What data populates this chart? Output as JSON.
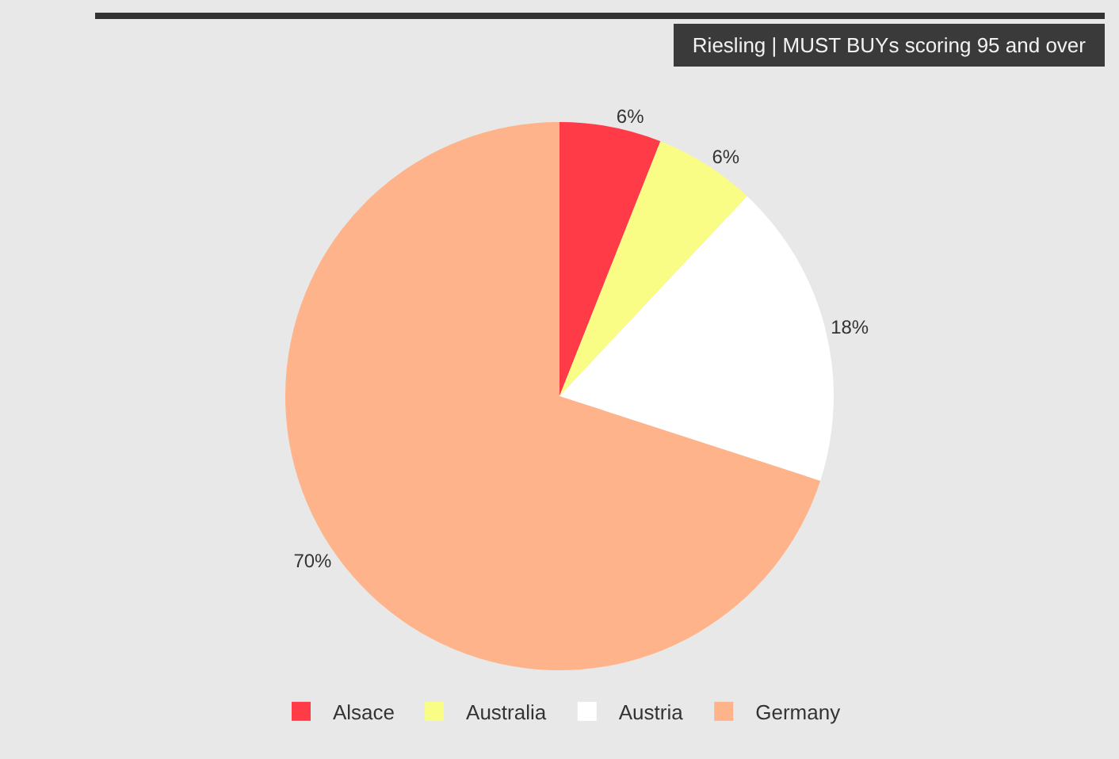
{
  "chart_data": {
    "type": "pie",
    "title": "Riesling | MUST BUYs scoring 95 and over",
    "categories": [
      "Alsace",
      "Australia",
      "Austria",
      "Germany"
    ],
    "values": [
      6,
      6,
      18,
      70
    ],
    "colors": [
      "#ff3b47",
      "#f9fd86",
      "#ffffff",
      "#ffb38a"
    ],
    "value_labels": [
      "6%",
      "6%",
      "18%",
      "70%"
    ],
    "legend": "bottom"
  }
}
